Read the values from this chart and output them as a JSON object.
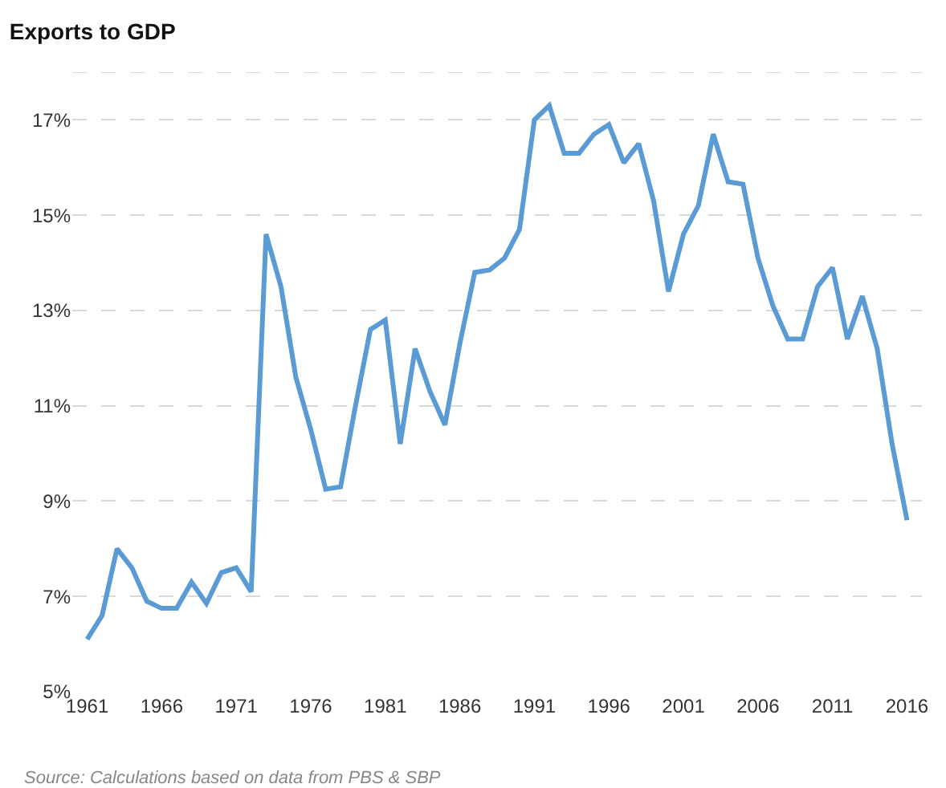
{
  "chart_data": {
    "type": "line",
    "title": "Exports to GDP",
    "annotations": [
      "Source: Calculations based on data from PBS & SBP"
    ],
    "x": [
      1961,
      1962,
      1963,
      1964,
      1965,
      1966,
      1967,
      1968,
      1969,
      1970,
      1971,
      1972,
      1973,
      1974,
      1975,
      1976,
      1977,
      1978,
      1979,
      1980,
      1981,
      1982,
      1983,
      1984,
      1985,
      1986,
      1987,
      1988,
      1989,
      1990,
      1991,
      1992,
      1993,
      1994,
      1995,
      1996,
      1997,
      1998,
      1999,
      2000,
      2001,
      2002,
      2003,
      2004,
      2005,
      2006,
      2007,
      2008,
      2009,
      2010,
      2011,
      2012,
      2013,
      2014,
      2015,
      2016
    ],
    "series": [
      {
        "color": "#5b9bd5",
        "values": [
          6.1,
          6.6,
          8.0,
          7.6,
          6.9,
          6.75,
          6.75,
          7.3,
          6.85,
          7.5,
          7.6,
          7.1,
          14.6,
          13.5,
          11.6,
          10.5,
          9.25,
          9.3,
          11.0,
          12.6,
          12.8,
          10.2,
          12.2,
          11.3,
          10.6,
          12.3,
          13.8,
          13.85,
          14.1,
          14.7,
          17.0,
          17.3,
          16.3,
          16.3,
          16.7,
          16.9,
          16.1,
          16.5,
          15.3,
          13.4,
          14.6,
          15.2,
          16.7,
          15.7,
          15.65,
          14.1,
          13.1,
          12.4,
          12.4,
          13.5,
          13.9,
          12.4,
          13.3,
          12.2,
          10.2,
          8.6
        ]
      }
    ],
    "xlim": [
      1960,
      2017
    ],
    "ylim": [
      5,
      18
    ],
    "xticks": [
      1961,
      1966,
      1971,
      1976,
      1981,
      1986,
      1991,
      1996,
      2001,
      2006,
      2011,
      2016
    ],
    "yticks": [
      {
        "value": 5,
        "label": "5%"
      },
      {
        "value": 7,
        "label": "7%"
      },
      {
        "value": 9,
        "label": "9%"
      },
      {
        "value": 11,
        "label": "11%"
      },
      {
        "value": 13,
        "label": "13%"
      },
      {
        "value": 15,
        "label": "15%"
      },
      {
        "value": 17,
        "label": "17%"
      },
      {
        "value": 18,
        "label": null
      }
    ],
    "grid": "y",
    "legend": false,
    "marker": "none",
    "line_style": "solid"
  }
}
